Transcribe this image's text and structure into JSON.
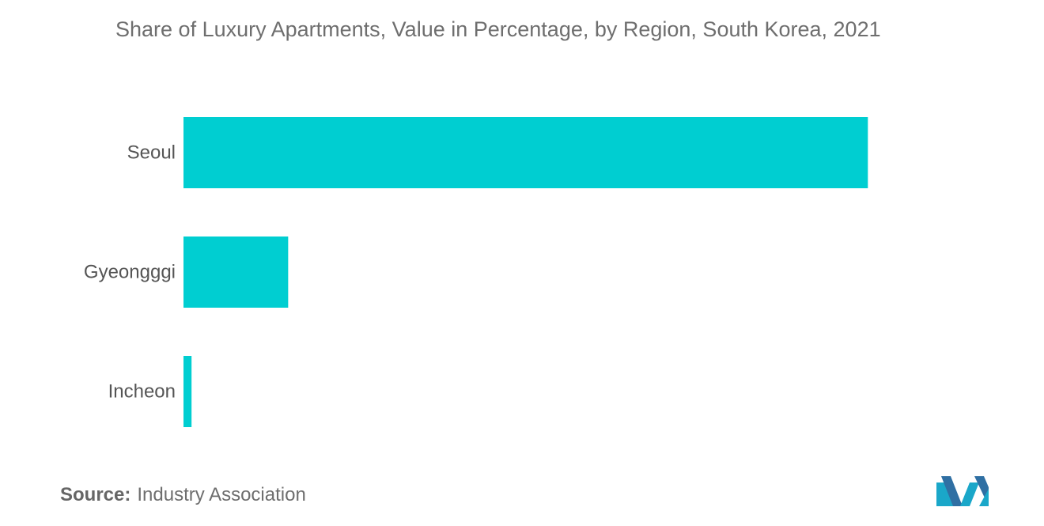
{
  "chart_data": {
    "type": "bar",
    "orientation": "horizontal",
    "title": "Share of Luxury Apartments, Value in Percentage, by Region, South Korea, 2021",
    "categories": [
      "Seoul",
      "Gyeongggi",
      "Incheon"
    ],
    "values": [
      85,
      13,
      1
    ],
    "xlim": [
      0,
      100
    ],
    "grid": false,
    "legend": "none",
    "colors": {
      "bar": "#00ced1"
    }
  },
  "source": {
    "label": "Source:",
    "text": "Industry Association"
  },
  "logo": {
    "icon": "mordor-intelligence-logo-icon"
  }
}
